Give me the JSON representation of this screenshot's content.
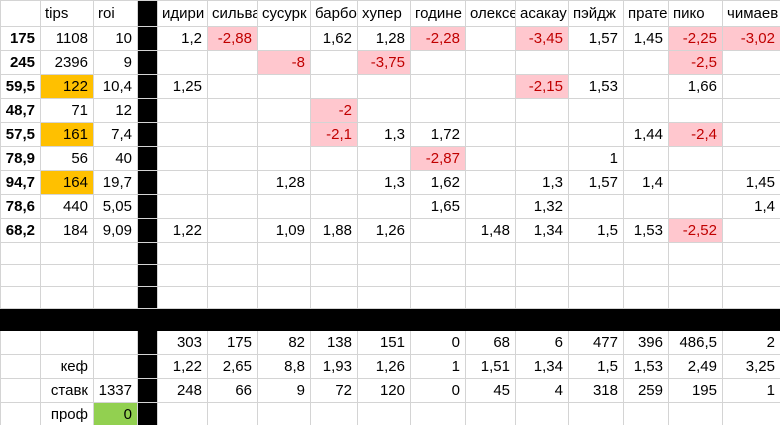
{
  "sheet": {
    "left_headers": {
      "a": "",
      "tips": "tips",
      "roi": "roi"
    },
    "column_headers": [
      "идири",
      "сильва",
      "сусурк",
      "барбо",
      "хупер",
      "године",
      "олексе",
      "асакау",
      "пэйдж",
      "пратес",
      "пико",
      "чимаев"
    ],
    "rows": [
      {
        "label": "175",
        "tips": "1108",
        "roi": "10",
        "tips_highlight": false,
        "values": [
          "1,2",
          "-2,88",
          "",
          "1,62",
          "1,28",
          "-2,28",
          "",
          "-3,45",
          "1,57",
          "1,45",
          "-2,25",
          "-3,02"
        ]
      },
      {
        "label": "245",
        "tips": "2396",
        "roi": "9",
        "tips_highlight": false,
        "values": [
          "",
          "",
          "-8",
          "",
          "-3,75",
          "",
          "",
          "",
          "",
          "",
          "-2,5",
          ""
        ]
      },
      {
        "label": "59,5",
        "tips": "122",
        "roi": "10,4",
        "tips_highlight": true,
        "values": [
          "1,25",
          "",
          "",
          "",
          "",
          "",
          "",
          "-2,15",
          "1,53",
          "",
          "1,66",
          ""
        ]
      },
      {
        "label": "48,7",
        "tips": "71",
        "roi": "12",
        "tips_highlight": false,
        "values": [
          "",
          "",
          "",
          "-2",
          "",
          "",
          "",
          "",
          "",
          "",
          "",
          ""
        ]
      },
      {
        "label": "57,5",
        "tips": "161",
        "roi": "7,4",
        "tips_highlight": true,
        "values": [
          "",
          "",
          "",
          "-2,1",
          "1,3",
          "1,72",
          "",
          "",
          "",
          "1,44",
          "-2,4",
          ""
        ]
      },
      {
        "label": "78,9",
        "tips": "56",
        "roi": "40",
        "tips_highlight": false,
        "values": [
          "",
          "",
          "",
          "",
          "",
          "-2,87",
          "",
          "",
          "1",
          "",
          "",
          ""
        ]
      },
      {
        "label": "94,7",
        "tips": "164",
        "roi": "19,7",
        "tips_highlight": true,
        "values": [
          "",
          "",
          "1,28",
          "",
          "1,3",
          "1,62",
          "",
          "1,3",
          "1,57",
          "1,4",
          "",
          "1,45"
        ]
      },
      {
        "label": "78,6",
        "tips": "440",
        "roi": "5,05",
        "tips_highlight": false,
        "values": [
          "",
          "",
          "",
          "",
          "",
          "1,65",
          "",
          "1,32",
          "",
          "",
          "",
          "1,4"
        ]
      },
      {
        "label": "68,2",
        "tips": "184",
        "roi": "9,09",
        "tips_highlight": false,
        "values": [
          "1,22",
          "",
          "1,09",
          "1,88",
          "1,26",
          "",
          "1,48",
          "1,34",
          "1,5",
          "1,53",
          "-2,52",
          ""
        ]
      }
    ],
    "empty_row_count": 3,
    "summary": {
      "counts": [
        "303",
        "175",
        "82",
        "138",
        "151",
        "0",
        "68",
        "6",
        "477",
        "396",
        "486,5",
        "2"
      ],
      "kef_label": "кеф",
      "kef_values": [
        "1,22",
        "2,65",
        "8,8",
        "1,93",
        "1,26",
        "1",
        "1,51",
        "1,34",
        "1,5",
        "1,53",
        "2,49",
        "3,25"
      ],
      "stavk_label": "ставк",
      "stavk_total": "1337",
      "stavk_values": [
        "248",
        "66",
        "9",
        "72",
        "120",
        "0",
        "45",
        "4",
        "318",
        "259",
        "195",
        "1"
      ],
      "prof_label": "проф",
      "prof_value": "0"
    },
    "colors": {
      "negative_fill": "#FFC7CE",
      "negative_text": "#C00000",
      "tips_highlight": "#FFC000",
      "profit_highlight": "#92D050",
      "separator": "#000000",
      "gridline": "#D4D4D4"
    }
  }
}
